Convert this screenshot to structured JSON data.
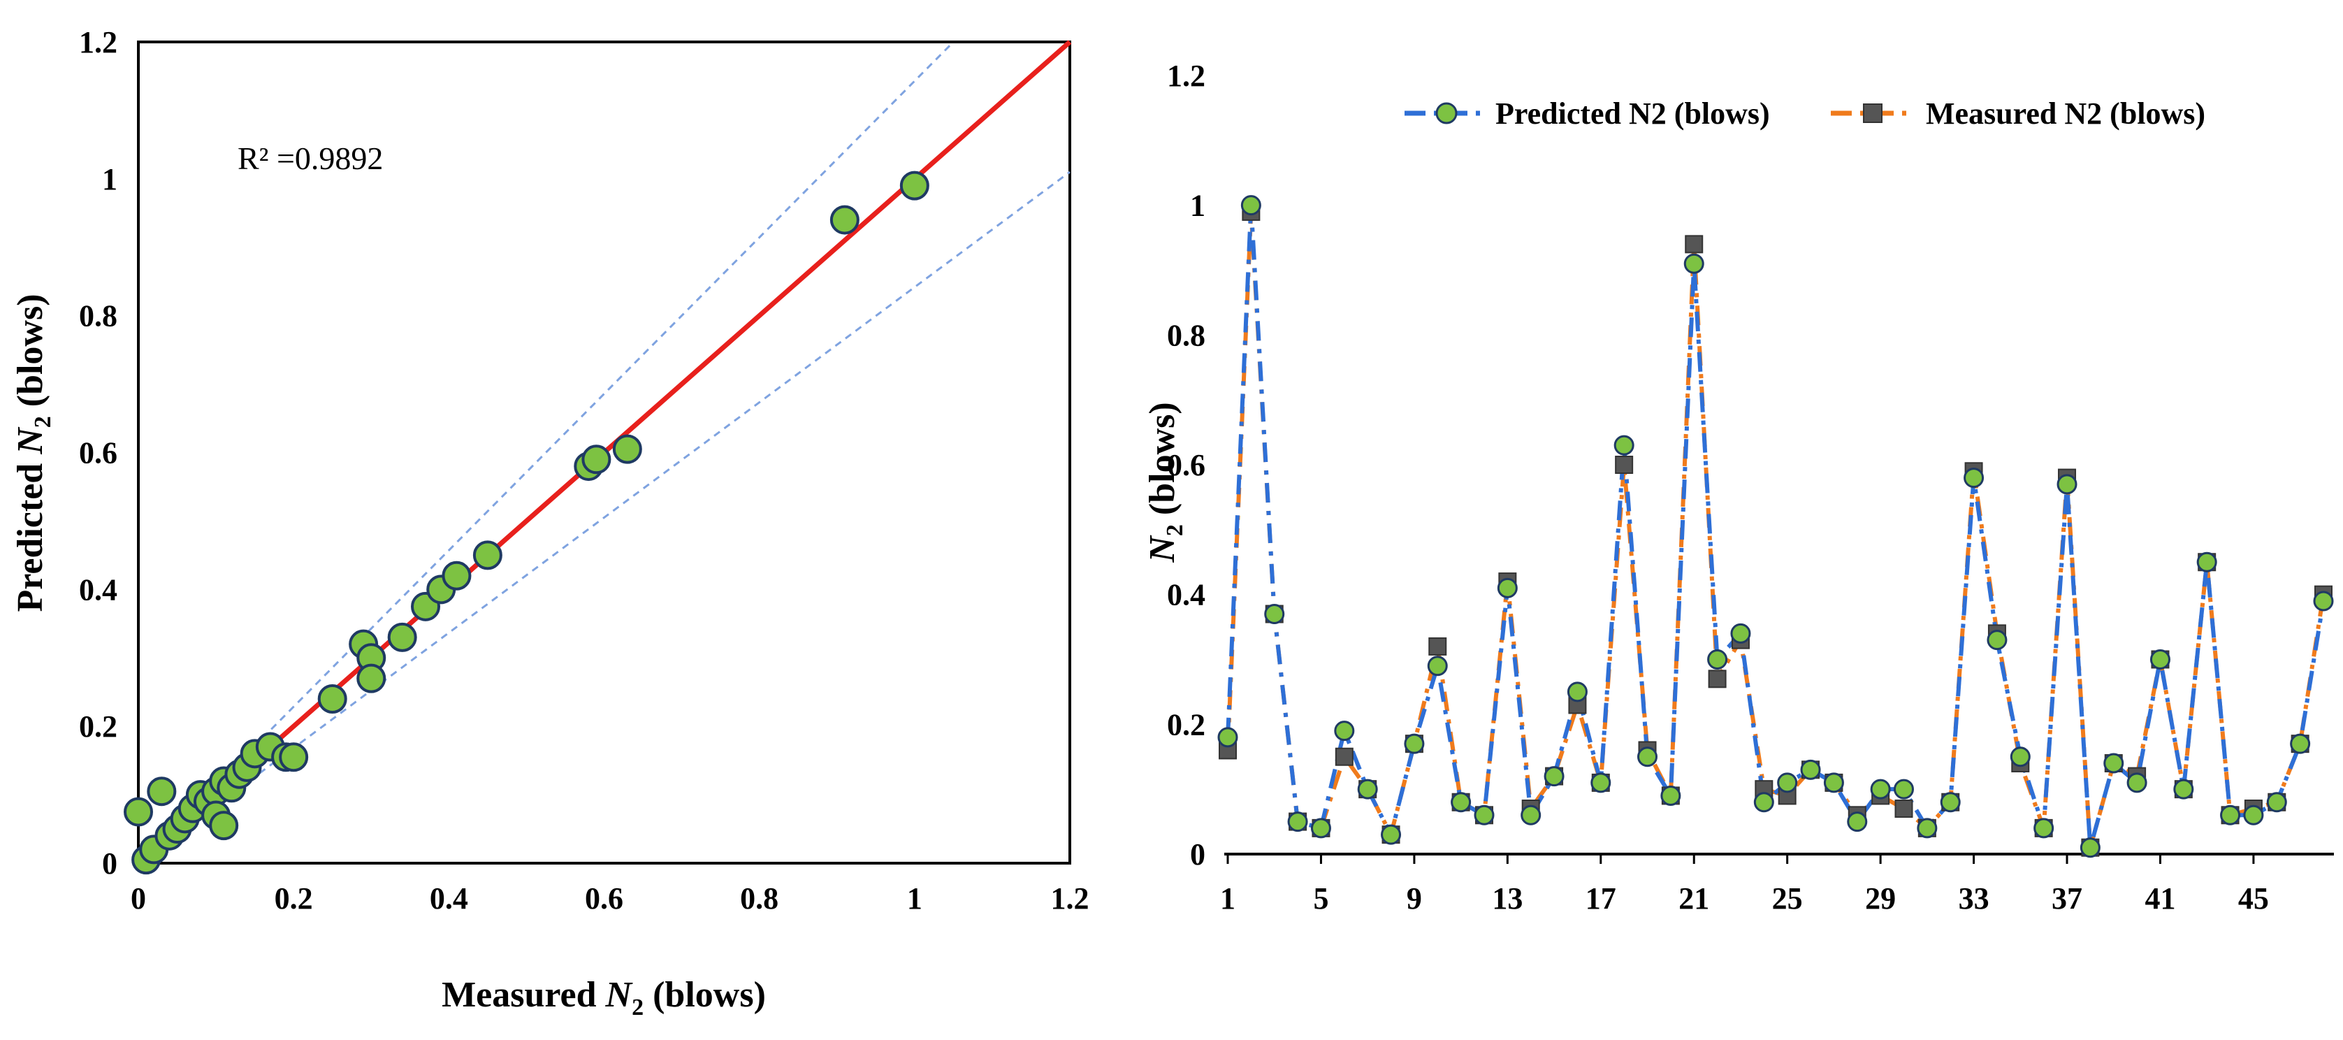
{
  "chart_data": [
    {
      "type": "scatter",
      "xlabel_prefix": "Measured ",
      "xlabel_var": "N",
      "xlabel_sub": "2",
      "xlabel_suffix": " (blows)",
      "ylabel_prefix": "Predicted ",
      "ylabel_var": "N",
      "ylabel_sub": "2",
      "ylabel_suffix": "  (blows)",
      "annotation": "R² =0.9892",
      "xlim": [
        0,
        1.2
      ],
      "ylim": [
        0,
        1.2
      ],
      "ticks": [
        0,
        0.2,
        0.4,
        0.6,
        0.8,
        1,
        1.2
      ],
      "tick_labels": [
        "0",
        "0.2",
        "0.4",
        "0.6",
        "0.8",
        "1",
        "1.2"
      ],
      "fit_line": {
        "x": [
          0,
          1.2
        ],
        "y": [
          0,
          1.2
        ],
        "color": "#e8201c"
      },
      "bounds": [
        {
          "x": [
            0,
            1.05
          ],
          "y": [
            0,
            1.2
          ]
        },
        {
          "x": [
            0,
            1.2
          ],
          "y": [
            0,
            1.01
          ]
        }
      ],
      "marker_fill": "#7dc242",
      "marker_stroke": "#1f3a63",
      "points": [
        [
          0.0,
          0.075
        ],
        [
          0.01,
          0.005
        ],
        [
          0.02,
          0.02
        ],
        [
          0.03,
          0.105
        ],
        [
          0.04,
          0.04
        ],
        [
          0.05,
          0.05
        ],
        [
          0.06,
          0.065
        ],
        [
          0.07,
          0.08
        ],
        [
          0.08,
          0.1
        ],
        [
          0.09,
          0.09
        ],
        [
          0.1,
          0.105
        ],
        [
          0.1,
          0.07
        ],
        [
          0.11,
          0.055
        ],
        [
          0.11,
          0.12
        ],
        [
          0.12,
          0.11
        ],
        [
          0.13,
          0.13
        ],
        [
          0.14,
          0.14
        ],
        [
          0.15,
          0.16
        ],
        [
          0.17,
          0.17
        ],
        [
          0.19,
          0.155
        ],
        [
          0.2,
          0.155
        ],
        [
          0.25,
          0.24
        ],
        [
          0.29,
          0.32
        ],
        [
          0.3,
          0.3
        ],
        [
          0.3,
          0.27
        ],
        [
          0.34,
          0.33
        ],
        [
          0.37,
          0.375
        ],
        [
          0.39,
          0.4
        ],
        [
          0.41,
          0.42
        ],
        [
          0.45,
          0.45
        ],
        [
          0.58,
          0.58
        ],
        [
          0.59,
          0.59
        ],
        [
          0.63,
          0.605
        ],
        [
          0.91,
          0.94
        ],
        [
          1.0,
          0.99
        ]
      ]
    },
    {
      "type": "line",
      "ylabel_var": "N",
      "ylabel_sub": "2",
      "ylabel_suffix": " (blows)",
      "ylim": [
        0,
        1.2
      ],
      "y_ticks": [
        0,
        0.2,
        0.4,
        0.6,
        0.8,
        1,
        1.2
      ],
      "y_tick_labels": [
        "0",
        "0.2",
        "0.4",
        "0.6",
        "0.8",
        "1",
        "1.2"
      ],
      "x_ticks": [
        1,
        5,
        9,
        13,
        17,
        21,
        25,
        29,
        33,
        37,
        41,
        45
      ],
      "x_tick_labels": [
        "1",
        "5",
        "9",
        "13",
        "17",
        "21",
        "25",
        "29",
        "33",
        "37",
        "41",
        "45"
      ],
      "x_range": [
        1,
        48
      ],
      "series": [
        {
          "name": "Predicted N2 (blows)",
          "line_color": "#2e6fd6",
          "marker": "circle",
          "marker_fill": "#7dc242",
          "values": [
            0.18,
            1.0,
            0.37,
            0.05,
            0.04,
            0.19,
            0.1,
            0.03,
            0.17,
            0.29,
            0.08,
            0.06,
            0.41,
            0.06,
            0.12,
            0.25,
            0.11,
            0.63,
            0.15,
            0.09,
            0.91,
            0.3,
            0.34,
            0.08,
            0.11,
            0.13,
            0.11,
            0.05,
            0.1,
            0.1,
            0.04,
            0.08,
            0.58,
            0.33,
            0.15,
            0.04,
            0.57,
            0.01,
            0.14,
            0.11,
            0.3,
            0.1,
            0.45,
            0.06,
            0.06,
            0.08,
            0.17,
            0.39
          ]
        },
        {
          "name": "Measured N2 (blows)",
          "line_color": "#f07b1c",
          "marker": "square",
          "marker_fill": "#555555",
          "values": [
            0.16,
            0.99,
            0.37,
            0.05,
            0.04,
            0.15,
            0.1,
            0.03,
            0.17,
            0.32,
            0.08,
            0.06,
            0.42,
            0.07,
            0.12,
            0.23,
            0.11,
            0.6,
            0.16,
            0.09,
            0.94,
            0.27,
            0.33,
            0.1,
            0.09,
            0.13,
            0.11,
            0.06,
            0.09,
            0.07,
            0.04,
            0.08,
            0.59,
            0.34,
            0.14,
            0.04,
            0.58,
            0.01,
            0.14,
            0.12,
            0.3,
            0.1,
            0.45,
            0.06,
            0.07,
            0.08,
            0.17,
            0.4
          ]
        }
      ]
    }
  ]
}
